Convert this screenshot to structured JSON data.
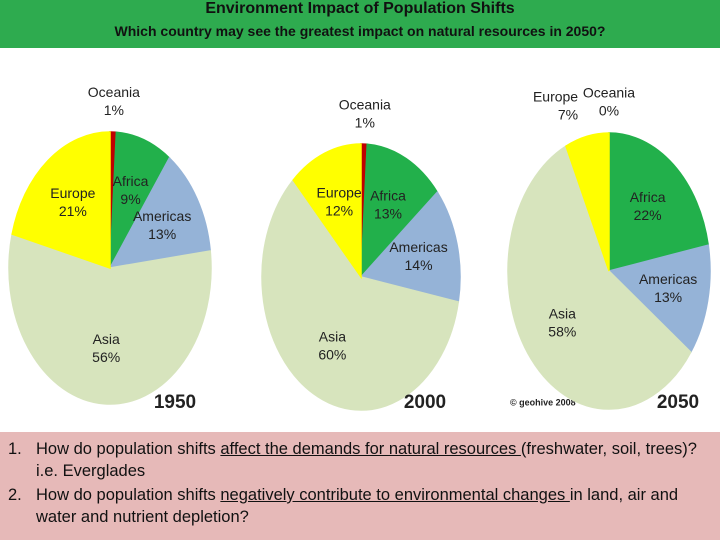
{
  "header": {
    "title": "Environment Impact of Population Shifts",
    "subtitle": "Which country may see the greatest impact on natural resources in 2050?"
  },
  "chart_data": [
    {
      "type": "pie",
      "title": "1950",
      "categories": [
        "Oceania",
        "Africa",
        "Americas",
        "Asia",
        "Europe"
      ],
      "values": [
        1,
        9,
        13,
        56,
        21
      ],
      "value_labels": [
        "1%",
        "9%",
        "13%",
        "56%",
        "21%"
      ],
      "colors": [
        "#c00000",
        "#22b04b",
        "#95b3d7",
        "#d7e4bd",
        "#ffff00"
      ]
    },
    {
      "type": "pie",
      "title": "2000",
      "categories": [
        "Oceania",
        "Africa",
        "Americas",
        "Asia",
        "Europe"
      ],
      "values": [
        1,
        13,
        14,
        60,
        12
      ],
      "value_labels": [
        "1%",
        "13%",
        "14%",
        "60%",
        "12%"
      ],
      "colors": [
        "#c00000",
        "#22b04b",
        "#95b3d7",
        "#d7e4bd",
        "#ffff00"
      ]
    },
    {
      "type": "pie",
      "title": "2050",
      "categories": [
        "Oceania",
        "Africa",
        "Americas",
        "Asia",
        "Europe"
      ],
      "values": [
        0,
        22,
        13,
        58,
        7
      ],
      "value_labels": [
        "0%",
        "22%",
        "13%",
        "58%",
        "7%"
      ],
      "colors": [
        "#c00000",
        "#22b04b",
        "#95b3d7",
        "#d7e4bd",
        "#ffff00"
      ]
    }
  ],
  "credit": "© geohive 2008",
  "questions": [
    {
      "number": "1.",
      "parts": [
        "How do population shifts ",
        "affect the demands for natural resources ",
        "(freshwater, soil, trees)? i.e. Everglades"
      ]
    },
    {
      "number": "2.",
      "parts": [
        "How do population shifts ",
        "negatively contribute to environmental changes ",
        "in land, air and water and nutrient depletion?"
      ]
    }
  ]
}
